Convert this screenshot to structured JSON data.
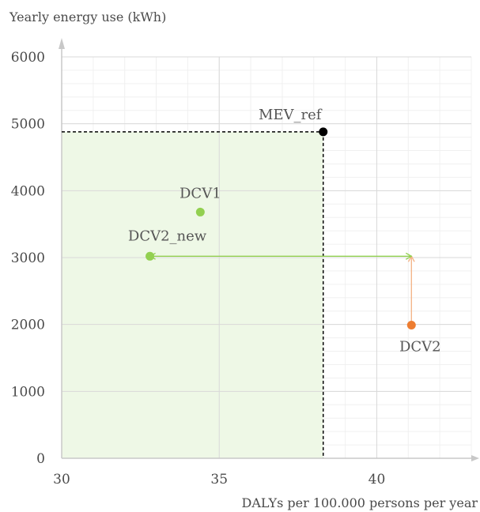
{
  "chart_data": {
    "type": "scatter",
    "xlabel": "DALYs per 100.000 persons per year",
    "ylabel": "Yearly energy use (kWh)",
    "xlim": [
      30,
      43
    ],
    "ylim": [
      0,
      6000
    ],
    "xticks": [
      "30",
      "35",
      "40"
    ],
    "yticks": [
      "0",
      "1000",
      "2000",
      "3000",
      "4000",
      "5000",
      "6000"
    ],
    "grid": true,
    "points": [
      {
        "label": "MEV_ref",
        "x": 38.3,
        "y": 4880,
        "color": "#000000"
      },
      {
        "label": "DCV1",
        "x": 34.4,
        "y": 3680,
        "color": "#92d050"
      },
      {
        "label": "DCV2_new",
        "x": 32.8,
        "y": 3020,
        "color": "#92d050"
      },
      {
        "label": "DCV2",
        "x": 41.1,
        "y": 1990,
        "color": "#ed7d31"
      }
    ],
    "reference_region": {
      "x0": 30,
      "x1": 38.3,
      "y0": 0,
      "y1": 4880,
      "color": "#eef8e6"
    },
    "arrows": [
      {
        "from": [
          41.1,
          3020
        ],
        "to": [
          32.8,
          3020
        ],
        "color": "#92d050"
      },
      {
        "from": [
          41.1,
          1990
        ],
        "to": [
          41.1,
          3020
        ],
        "color": "#f4b183"
      }
    ]
  }
}
